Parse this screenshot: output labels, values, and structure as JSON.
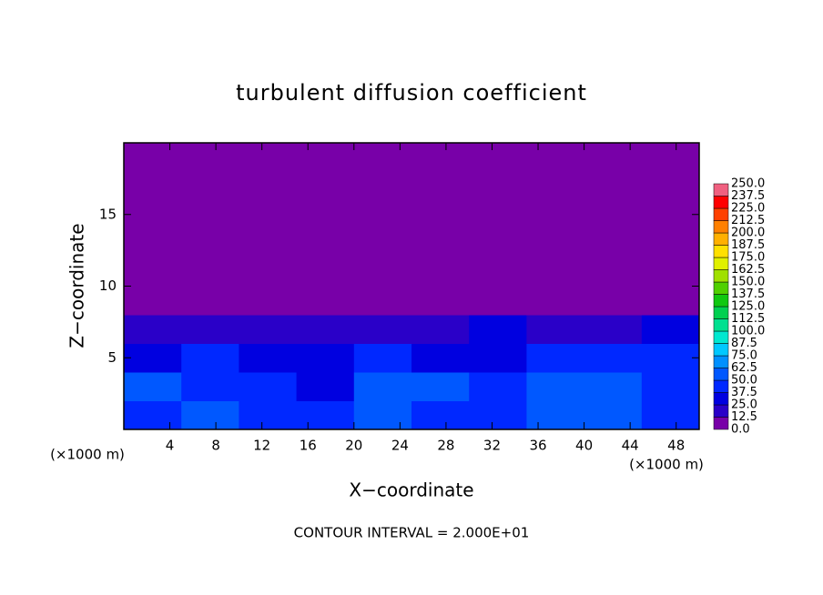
{
  "chart_data": {
    "type": "heatmap",
    "title": "turbulent diffusion coefficient",
    "xlabel": "X−coordinate",
    "ylabel": "Z−coordinate",
    "x_unit": "(×1000 m)",
    "footer": "CONTOUR INTERVAL = 2.000E+01",
    "xlim": [
      0,
      50
    ],
    "ylim": [
      0,
      20
    ],
    "xticks": [
      4,
      8,
      12,
      16,
      20,
      24,
      28,
      32,
      36,
      40,
      44,
      48
    ],
    "yticks": [
      5,
      10,
      15
    ],
    "x_edges": [
      0,
      5,
      10,
      15,
      20,
      25,
      30,
      35,
      40,
      45,
      50
    ],
    "y_edges": [
      0,
      2,
      4,
      6,
      8,
      20
    ],
    "z": [
      [
        45,
        50,
        40,
        38,
        55,
        48,
        42,
        50,
        60,
        40
      ],
      [
        52,
        45,
        48,
        35,
        50,
        55,
        40,
        62,
        55,
        45
      ],
      [
        35,
        40,
        30,
        28,
        38,
        30,
        35,
        45,
        40,
        38
      ],
      [
        20,
        22,
        15,
        18,
        20,
        14,
        25,
        22,
        18,
        25
      ],
      [
        0,
        0,
        0,
        0,
        0,
        0,
        0,
        0,
        0,
        0
      ]
    ],
    "colorbar": {
      "levels": [
        {
          "value": 0,
          "label": "0.0"
        },
        12.5,
        {
          "value": 25,
          "label": "25.0"
        },
        37.5,
        {
          "value": 50,
          "label": "50.0"
        },
        62.5,
        {
          "value": 75,
          "label": "75.0"
        },
        87.5,
        {
          "value": 100,
          "label": "100.0"
        },
        112.5,
        {
          "value": 125,
          "label": "125.0"
        },
        137.5,
        {
          "value": 150,
          "label": "150.0"
        },
        162.5,
        {
          "value": 175,
          "label": "175.0"
        },
        187.5,
        {
          "value": 200,
          "label": "200.0"
        },
        212.5,
        {
          "value": 225,
          "label": "225.0"
        },
        237.5,
        {
          "value": 250,
          "label": "250.0"
        }
      ],
      "colors": [
        "#7800a8",
        "#2a00c8",
        "#0000e0",
        "#0028ff",
        "#0058ff",
        "#0090ff",
        "#00c8ff",
        "#00e8d0",
        "#00e090",
        "#00d050",
        "#10c810",
        "#50d000",
        "#a0e000",
        "#e0f000",
        "#ffe000",
        "#ffb000",
        "#ff8000",
        "#ff4000",
        "#ff0000",
        "#f06080"
      ]
    }
  }
}
